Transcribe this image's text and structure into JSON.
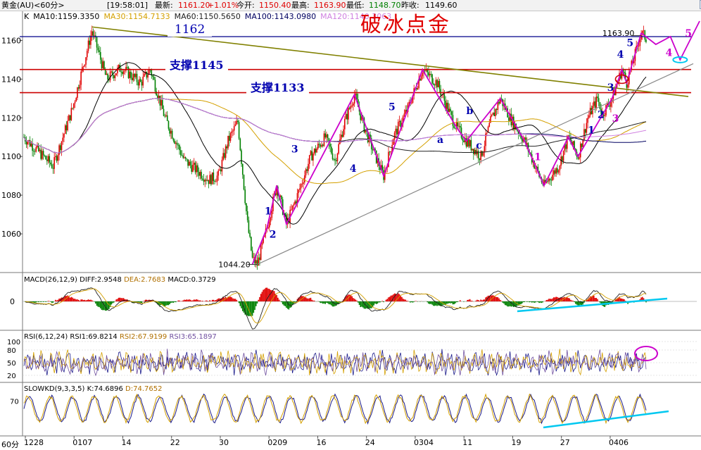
{
  "header": {
    "symbol": "黄金(AU)<60分>",
    "time": "[19:58:01]",
    "latest_label": "最新:",
    "latest": "1161.20",
    "change": "+1.01%",
    "open_label": "今开:",
    "open": "1150.40",
    "high_label": "最高:",
    "high": "1163.90",
    "low_label": "最低:",
    "low": "1148.70",
    "prev_label": "昨收:",
    "prev": "1149.60"
  },
  "ma_legend": [
    {
      "text": "K",
      "color": "#000000"
    },
    {
      "text": "MA10:1159.3350",
      "color": "#000000"
    },
    {
      "text": "MA30:1154.7133",
      "color": "#d4a000"
    },
    {
      "text": "MA60:1150.5650",
      "color": "#222222"
    },
    {
      "text": "MA100:1143.0980",
      "color": "#000060"
    },
    {
      "text": "MA120:1140.3063",
      "color": "#d080e0"
    }
  ],
  "title": "破冰点金",
  "annotations": {
    "level_1162": "1162",
    "support_1145": "支撑1145",
    "support_1133": "支撑1133",
    "high_price": "1163.90",
    "low_price": "1044.20"
  },
  "wave_labels_blue": [
    "1",
    "2",
    "3",
    "4",
    "5",
    "a",
    "b",
    "c",
    "1",
    "2",
    "3",
    "4",
    "5"
  ],
  "wave_labels_magenta": [
    "1",
    "3",
    "4",
    "5"
  ],
  "indicators": {
    "macd": {
      "name": "MACD(26,12,9)",
      "diff": "DIFF:2.9548",
      "dea": "DEA:2.7683",
      "macd": "MACD:0.3729"
    },
    "rsi": {
      "name": "RSI(6,12,24)",
      "rsi1": "RSI1:69.8214",
      "rsi2": "RSI2:67.9199",
      "rsi3": "RSI3:65.1897"
    },
    "kd": {
      "name": "SLOWKD(9,3,3,5)",
      "k": "K:74.6896",
      "d": "D:74.7652"
    }
  },
  "bottom_left": "60分",
  "colors": {
    "up": "#e00000",
    "down": "#008000",
    "ma30": "#d4a000",
    "ma120": "#d080e0",
    "trend": "#808000",
    "accent": "#00c8f0"
  },
  "chart_data": [
    {
      "type": "candlestick",
      "title": "破冰点金",
      "xlabel": "",
      "ylabel": "",
      "ylim": [
        1040,
        1170
      ],
      "y_ticks": [
        1060,
        1080,
        1100,
        1120,
        1140,
        1160
      ],
      "x_ticks": [
        "1228",
        "0107",
        "14",
        "22",
        "30",
        "0209",
        "16",
        "24",
        "0304",
        "11",
        "19",
        "27",
        "0406"
      ],
      "price_path": [
        [
          0,
          1110
        ],
        [
          4,
          1100
        ],
        [
          6,
          1095
        ],
        [
          10,
          1125
        ],
        [
          14,
          1165
        ],
        [
          17,
          1140
        ],
        [
          20,
          1146
        ],
        [
          24,
          1138
        ],
        [
          26,
          1145
        ],
        [
          29,
          1120
        ],
        [
          33,
          1098
        ],
        [
          38,
          1088
        ],
        [
          40,
          1090
        ],
        [
          42,
          1108
        ],
        [
          44,
          1118
        ],
        [
          46,
          1065
        ],
        [
          47,
          1047
        ],
        [
          48,
          1044.2
        ],
        [
          50,
          1063
        ],
        [
          52,
          1085
        ],
        [
          54,
          1065
        ],
        [
          56,
          1078
        ],
        [
          59,
          1100
        ],
        [
          62,
          1110
        ],
        [
          64,
          1098
        ],
        [
          66,
          1118
        ],
        [
          68,
          1132
        ],
        [
          70,
          1115
        ],
        [
          72,
          1102
        ],
        [
          74,
          1090
        ],
        [
          76,
          1110
        ],
        [
          79,
          1125
        ],
        [
          82,
          1145
        ],
        [
          85,
          1138
        ],
        [
          88,
          1120
        ],
        [
          89,
          1115
        ],
        [
          91,
          1108
        ],
        [
          94,
          1100
        ],
        [
          96,
          1118
        ],
        [
          98,
          1130
        ],
        [
          100,
          1120
        ],
        [
          103,
          1108
        ],
        [
          106,
          1090
        ],
        [
          107,
          1085
        ],
        [
          110,
          1095
        ],
        [
          112,
          1110
        ],
        [
          114,
          1100
        ],
        [
          116,
          1120
        ],
        [
          118,
          1130
        ],
        [
          119,
          1122
        ],
        [
          121,
          1130
        ],
        [
          123,
          1145
        ],
        [
          124,
          1138
        ],
        [
          126,
          1155
        ],
        [
          127,
          1163.9
        ],
        [
          128,
          1161.2
        ]
      ],
      "high": 1163.9,
      "low": 1044.2,
      "levels": [
        1162,
        1145,
        1133
      ]
    },
    {
      "type": "line",
      "name": "MACD(26,12,9)",
      "series": [
        {
          "name": "DIFF",
          "values": [
            2.9548
          ]
        },
        {
          "name": "DEA",
          "values": [
            2.7683
          ]
        },
        {
          "name": "MACD",
          "values": [
            0.3729
          ]
        }
      ],
      "y_ticks": [
        0
      ]
    },
    {
      "type": "line",
      "name": "RSI(6,12,24)",
      "series": [
        {
          "name": "RSI1",
          "values": [
            69.8214
          ]
        },
        {
          "name": "RSI2",
          "values": [
            67.9199
          ]
        },
        {
          "name": "RSI3",
          "values": [
            65.1897
          ]
        }
      ],
      "y_ticks": [
        20,
        50,
        80,
        100
      ]
    },
    {
      "type": "line",
      "name": "SLOWKD(9,3,3,5)",
      "series": [
        {
          "name": "K",
          "values": [
            74.6896
          ]
        },
        {
          "name": "D",
          "values": [
            74.7652
          ]
        }
      ],
      "y_ticks": [
        70
      ]
    }
  ]
}
